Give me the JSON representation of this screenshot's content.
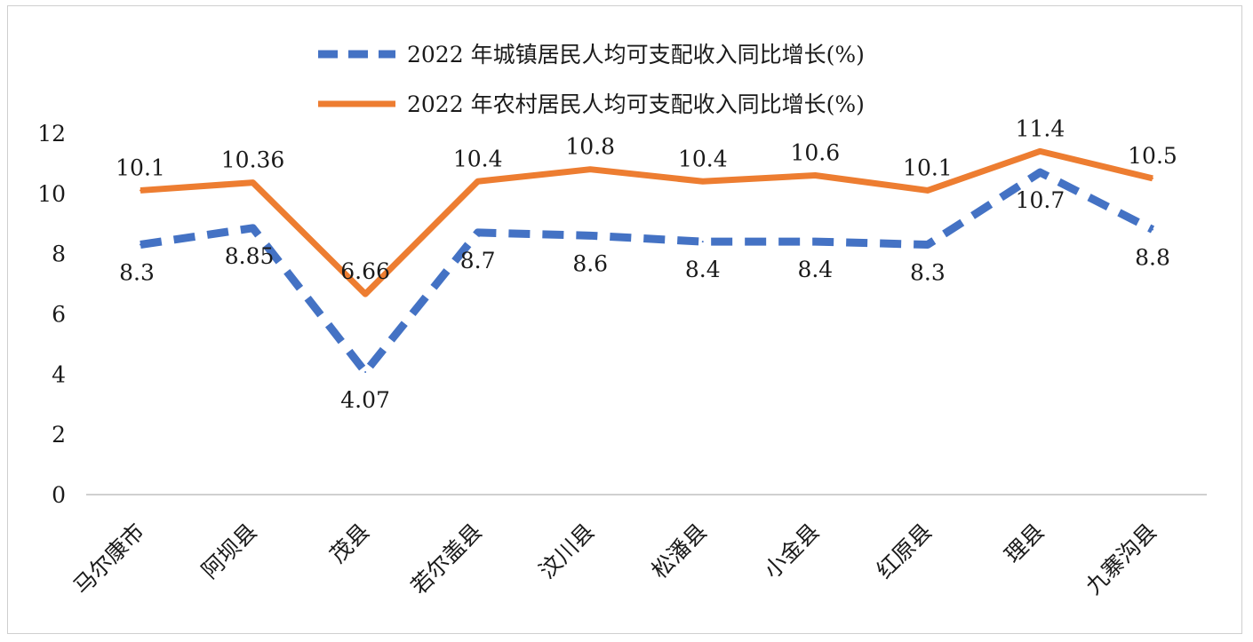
{
  "chart_data": {
    "type": "line",
    "categories": [
      "马尔康市",
      "阿坝县",
      "茂县",
      "若尔盖县",
      "汶川县",
      "松潘县",
      "小金县",
      "红原县",
      "理县",
      "九寨沟县"
    ],
    "series": [
      {
        "name": "2022 年城镇居民人均可支配收入同比增长(%)",
        "values": [
          8.3,
          8.85,
          4.07,
          8.7,
          8.6,
          8.4,
          8.4,
          8.3,
          10.7,
          8.8
        ],
        "labels": [
          "8.3",
          "8.85",
          "4.07",
          "8.7",
          "8.6",
          "8.4",
          "8.4",
          "8.3",
          "10.7",
          "8.8"
        ],
        "color": "#4472C4",
        "style": "dashed"
      },
      {
        "name": "2022 年农村居民人均可支配收入同比增长(%)",
        "values": [
          10.1,
          10.36,
          6.66,
          10.4,
          10.8,
          10.4,
          10.6,
          10.1,
          11.4,
          10.5
        ],
        "labels": [
          "10.1",
          "10.36",
          "6.66",
          "10.4",
          "10.8",
          "10.4",
          "10.6",
          "10.1",
          "11.4",
          "10.5"
        ],
        "color": "#ED7D31",
        "style": "solid"
      }
    ],
    "ylim": [
      0,
      12
    ],
    "yticks": [
      "0",
      "2",
      "4",
      "6",
      "8",
      "10",
      "12"
    ],
    "grid": false,
    "legend_position": "top"
  }
}
